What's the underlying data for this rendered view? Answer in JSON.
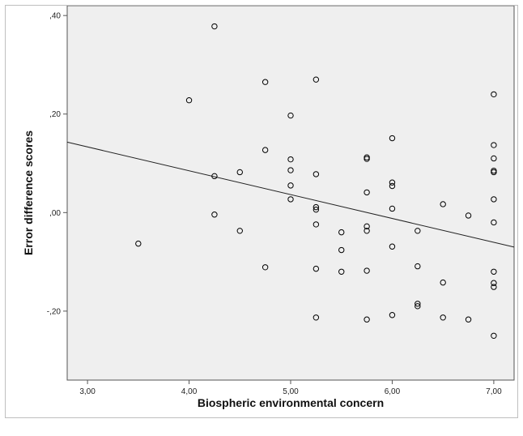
{
  "chart_data": {
    "type": "scatter",
    "title": "",
    "xlabel": "Biospheric environmental concern",
    "ylabel": "Error difference scores",
    "xlim": [
      2.8,
      7.2
    ],
    "ylim": [
      -0.34,
      0.42
    ],
    "x_ticks": [
      3.0,
      4.0,
      5.0,
      6.0,
      7.0
    ],
    "x_tick_labels": [
      "3,00",
      "4,00",
      "5,00",
      "6,00",
      "7,00"
    ],
    "y_ticks": [
      0.4,
      0.2,
      0.0,
      -0.2
    ],
    "y_tick_labels": [
      ",40",
      ",20",
      ",00",
      "-,20"
    ],
    "grid": false,
    "legend": "none",
    "plot_background": "#efefef",
    "point_color": "#000000",
    "fit_line": {
      "type": "linear",
      "points": [
        [
          2.8,
          0.143
        ],
        [
          7.2,
          -0.07
        ]
      ]
    },
    "series": [
      {
        "points": [
          [
            3.5,
            -0.063
          ],
          [
            4.0,
            0.228
          ],
          [
            4.25,
            0.378
          ],
          [
            4.25,
            0.074
          ],
          [
            4.25,
            -0.004
          ],
          [
            4.5,
            0.082
          ],
          [
            4.5,
            -0.037
          ],
          [
            4.75,
            0.265
          ],
          [
            4.75,
            0.127
          ],
          [
            4.75,
            -0.111
          ],
          [
            5.0,
            0.197
          ],
          [
            5.0,
            0.108
          ],
          [
            5.0,
            0.086
          ],
          [
            5.0,
            0.055
          ],
          [
            5.0,
            0.027
          ],
          [
            5.25,
            0.27
          ],
          [
            5.25,
            0.078
          ],
          [
            5.25,
            0.011
          ],
          [
            5.25,
            0.006
          ],
          [
            5.25,
            -0.024
          ],
          [
            5.25,
            -0.114
          ],
          [
            5.25,
            -0.213
          ],
          [
            5.5,
            -0.04
          ],
          [
            5.5,
            -0.076
          ],
          [
            5.5,
            -0.12
          ],
          [
            5.75,
            0.112
          ],
          [
            5.75,
            0.109
          ],
          [
            5.75,
            0.041
          ],
          [
            5.75,
            -0.028
          ],
          [
            5.75,
            -0.037
          ],
          [
            5.75,
            -0.118
          ],
          [
            5.75,
            -0.217
          ],
          [
            6.0,
            0.151
          ],
          [
            6.0,
            0.061
          ],
          [
            6.0,
            0.054
          ],
          [
            6.0,
            0.008
          ],
          [
            6.0,
            -0.069
          ],
          [
            6.0,
            -0.208
          ],
          [
            6.25,
            -0.037
          ],
          [
            6.25,
            -0.109
          ],
          [
            6.25,
            -0.185
          ],
          [
            6.25,
            -0.19
          ],
          [
            6.5,
            0.017
          ],
          [
            6.5,
            -0.142
          ],
          [
            6.5,
            -0.213
          ],
          [
            6.75,
            -0.006
          ],
          [
            6.75,
            -0.217
          ],
          [
            7.0,
            0.24
          ],
          [
            7.0,
            0.137
          ],
          [
            7.0,
            0.11
          ],
          [
            7.0,
            0.085
          ],
          [
            7.0,
            0.082
          ],
          [
            7.0,
            0.027
          ],
          [
            7.0,
            -0.02
          ],
          [
            7.0,
            -0.12
          ],
          [
            7.0,
            -0.143
          ],
          [
            7.0,
            -0.151
          ],
          [
            7.0,
            -0.25
          ]
        ]
      }
    ]
  }
}
